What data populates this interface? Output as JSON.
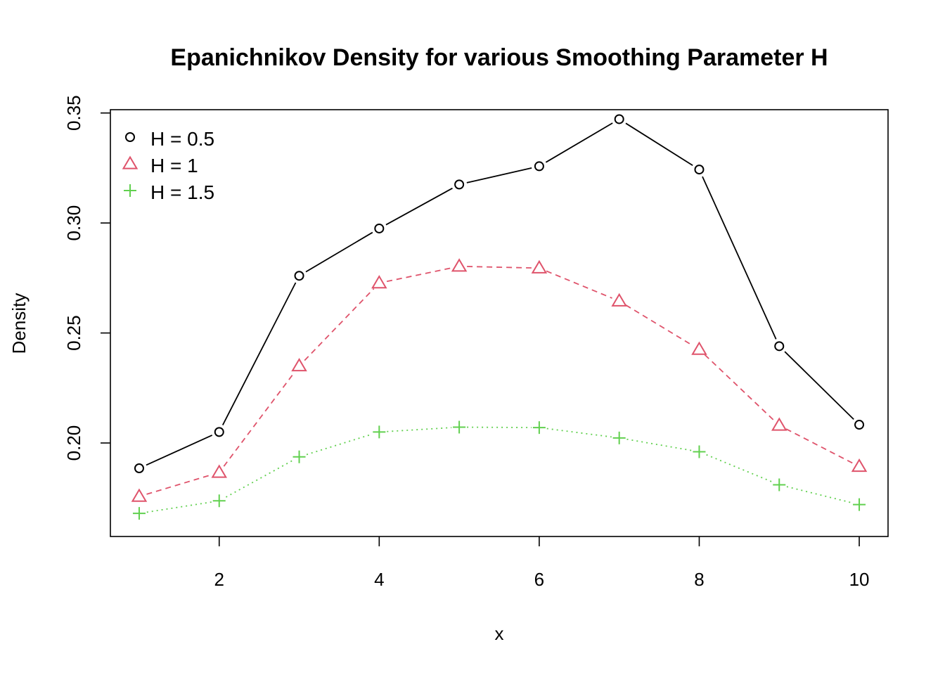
{
  "chart_data": {
    "type": "line",
    "title": "Epanichnikov Density for various Smoothing Parameter H",
    "xlabel": "x",
    "ylabel": "Density",
    "x": [
      1,
      2,
      3,
      4,
      5,
      6,
      7,
      8,
      9,
      10
    ],
    "xlim": [
      0.64,
      10.36
    ],
    "ylim": [
      0.1575,
      0.3515
    ],
    "x_ticks": [
      "2",
      "4",
      "6",
      "8",
      "10"
    ],
    "y_ticks": [
      "0.20",
      "0.25",
      "0.30",
      "0.35"
    ],
    "grid": false,
    "legend_position": "top-left",
    "series": [
      {
        "name": "H = 0.5",
        "color": "#000000",
        "line_style": "solid",
        "marker": "circle",
        "values": [
          0.1885,
          0.205,
          0.276,
          0.2975,
          0.3175,
          0.3258,
          0.3472,
          0.3243,
          0.244,
          0.2083
        ]
      },
      {
        "name": "H = 1",
        "color": "#DF536B",
        "line_style": "dashed",
        "marker": "triangle",
        "values": [
          0.1757,
          0.1866,
          0.235,
          0.2727,
          0.2803,
          0.2795,
          0.2645,
          0.2425,
          0.208,
          0.1893
        ]
      },
      {
        "name": "H = 1.5",
        "color": "#61D04F",
        "line_style": "dotted",
        "marker": "plus",
        "values": [
          0.168,
          0.1737,
          0.1937,
          0.205,
          0.2072,
          0.207,
          0.2023,
          0.196,
          0.181,
          0.172
        ]
      }
    ]
  }
}
